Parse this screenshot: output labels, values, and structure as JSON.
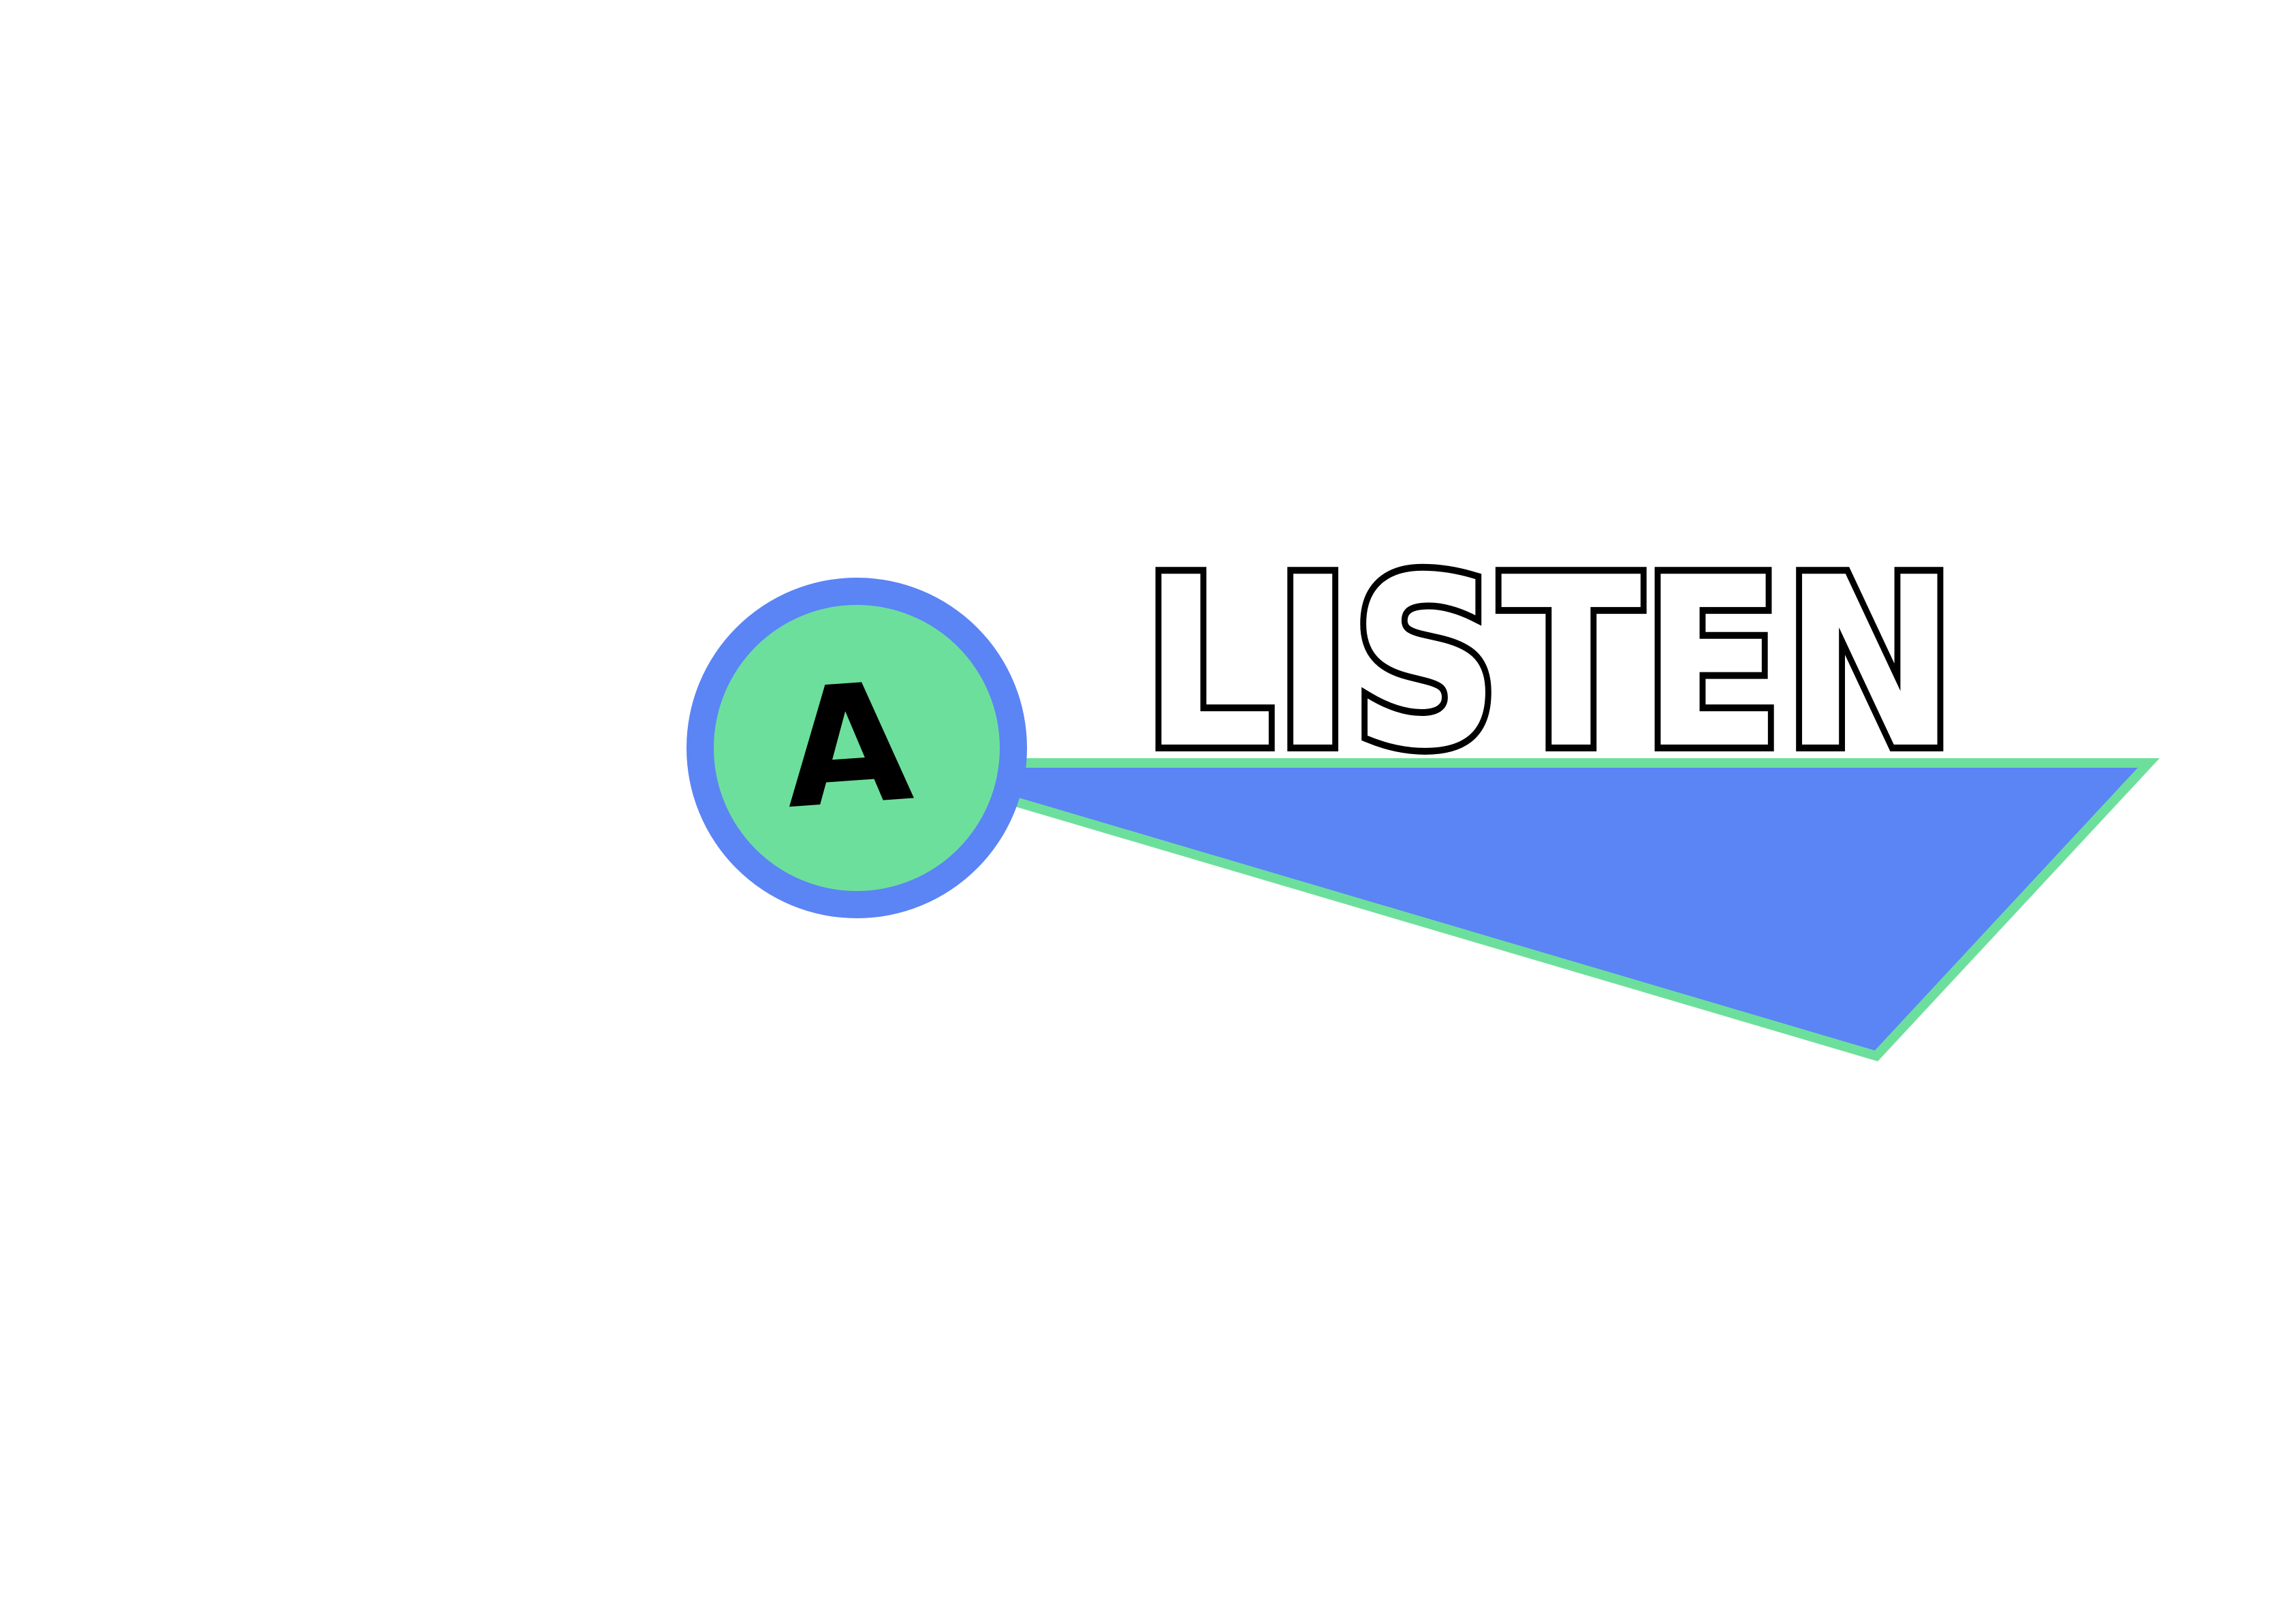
{
  "logo": {
    "badge_letter": "A",
    "wordmark": "LISTEN"
  },
  "colors": {
    "background": "#ffffff",
    "blue": "#5b84f5",
    "green": "#6ddf9c",
    "ink": "#000000",
    "wordmark_fill": "#ffffff"
  },
  "icons": {
    "badge": "circle-badge-icon",
    "banner": "pennant-shape-icon"
  }
}
